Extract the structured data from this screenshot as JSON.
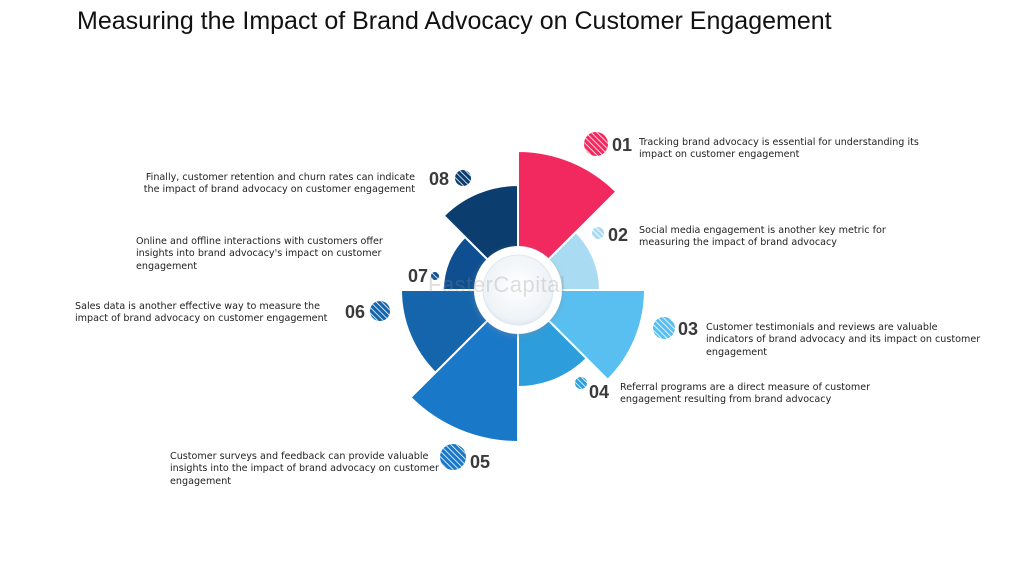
{
  "title": "Measuring the Impact of Brand Advocacy on Customer Engagement",
  "watermark": "FasterCapital",
  "steps": [
    {
      "number": "01",
      "text": "Tracking brand advocacy is essential for understanding its impact on customer engagement",
      "color": "#f2295e"
    },
    {
      "number": "02",
      "text": "Social media engagement is another key metric for measuring the impact of brand advocacy",
      "color": "#a9dcf2"
    },
    {
      "number": "03",
      "text": "Customer testimonials and reviews are valuable indicators of brand advocacy and its impact on customer engagement",
      "color": "#59bff0"
    },
    {
      "number": "04",
      "text": "Referral programs are a direct measure of customer engagement resulting from brand advocacy",
      "color": "#2d9ddb"
    },
    {
      "number": "05",
      "text": "Customer surveys and feedback can provide valuable insights into the impact of brand advocacy on customer engagement",
      "color": "#1a78c9"
    },
    {
      "number": "06",
      "text": "Sales data is another effective way to measure the impact of brand advocacy on customer engagement",
      "color": "#1565ad"
    },
    {
      "number": "07",
      "text": "Online and offline interactions with customers offer insights into brand advocacy's impact on customer engagement",
      "color": "#0f4f91"
    },
    {
      "number": "08",
      "text": "Finally, customer retention and churn rates can indicate the impact of brand advocacy on customer engagement",
      "color": "#0b3d6e"
    }
  ]
}
